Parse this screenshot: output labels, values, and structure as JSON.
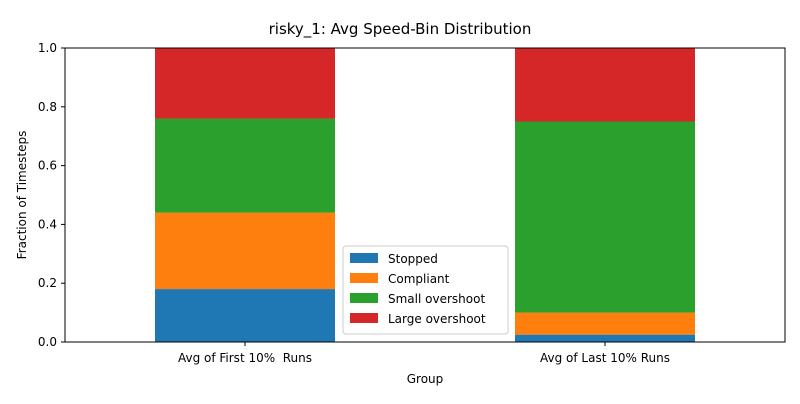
{
  "chart_data": {
    "type": "bar",
    "stacked": true,
    "title": "risky_1: Avg Speed-Bin Distribution",
    "xlabel": "Group",
    "ylabel": "Fraction of Timesteps",
    "ylim": [
      0,
      1
    ],
    "yticks": [
      "0.0",
      "0.2",
      "0.4",
      "0.6",
      "0.8",
      "1.0"
    ],
    "categories": [
      "Avg of First 10%  Runs",
      "Avg of Last 10% Runs"
    ],
    "series": [
      {
        "name": "Stopped",
        "color": "#1f77b4",
        "values": [
          0.18,
          0.025
        ]
      },
      {
        "name": "Compliant",
        "color": "#ff7f0e",
        "values": [
          0.26,
          0.075
        ]
      },
      {
        "name": "Small overshoot",
        "color": "#2ca02c",
        "values": [
          0.32,
          0.65
        ]
      },
      {
        "name": "Large overshoot",
        "color": "#d62728",
        "values": [
          0.24,
          0.25
        ]
      }
    ],
    "grid": false,
    "legend": "lower-center"
  }
}
